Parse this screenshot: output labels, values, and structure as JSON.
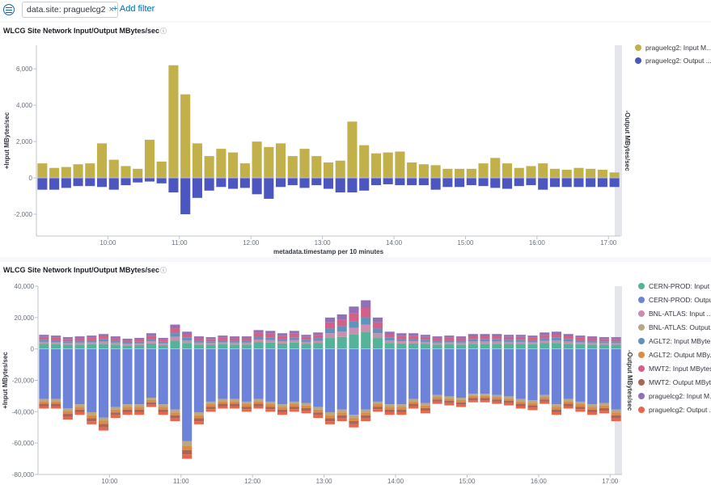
{
  "filter_bar": {
    "filter_pill": "data.site: praguelcg2",
    "remove_glyph": "×",
    "add_filter": "+ Add filter"
  },
  "panels": [
    {
      "title": "WLCG Site Network Input/Output MBytes/sec",
      "info": "ⓘ"
    },
    {
      "title": "WLCG Site Network Input/Output MBytes/sec",
      "info": "ⓘ"
    }
  ],
  "chart_data": [
    {
      "type": "bar",
      "stacked": false,
      "xlabel": "metadata.timestamp per 10 minutes",
      "ylabel_left": "+Input MBytes/sec",
      "ylabel_right": "-Output MBytes/sec",
      "ylim": [
        -3200,
        7300
      ],
      "y_ticks": [
        "6,000",
        "4,000",
        "2,000",
        "0",
        "-2,000"
      ],
      "y_tick_values": [
        6000,
        4000,
        2000,
        0,
        -2000
      ],
      "x_ticks": [
        "10:00",
        "11:00",
        "12:00",
        "13:00",
        "14:00",
        "15:00",
        "16:00",
        "17:00"
      ],
      "x_tick_times": [
        "10:00",
        "11:00",
        "12:00",
        "13:00",
        "14:00",
        "15:00",
        "16:00",
        "17:00"
      ],
      "x_start": "09:05",
      "interval_minutes": 10,
      "grid": false,
      "legend_position": "right",
      "series": [
        {
          "name": "praguelcg2: Input M...",
          "color": "#c2b04b",
          "values": [
            800,
            550,
            600,
            750,
            800,
            1900,
            1000,
            650,
            500,
            2100,
            900,
            6200,
            4600,
            1900,
            1200,
            1600,
            1400,
            800,
            2000,
            1700,
            1900,
            1200,
            1600,
            1200,
            850,
            950,
            3100,
            1800,
            1350,
            1400,
            1450,
            850,
            750,
            700,
            500,
            500,
            500,
            800,
            1100,
            800,
            550,
            650,
            800,
            500,
            450,
            550,
            500,
            450,
            300
          ]
        },
        {
          "name": "praguelcg2: Output ...",
          "color": "#4b56c1",
          "values": [
            -650,
            -650,
            -550,
            -450,
            -450,
            -500,
            -650,
            -400,
            -250,
            -200,
            -300,
            -800,
            -2000,
            -1100,
            -700,
            -500,
            -600,
            -550,
            -900,
            -1150,
            -500,
            -400,
            -550,
            -400,
            -600,
            -800,
            -800,
            -700,
            -400,
            -350,
            -400,
            -400,
            -400,
            -650,
            -500,
            -500,
            -400,
            -450,
            -550,
            -600,
            -450,
            -400,
            -650,
            -500,
            -500,
            -500,
            -500,
            -500,
            -500
          ]
        }
      ]
    },
    {
      "type": "bar",
      "stacked": true,
      "xlabel": "",
      "ylabel_left": "+Input MBytes/sec",
      "ylabel_right": "-Output MBytes/sec",
      "ylim": [
        -80000,
        40000
      ],
      "y_ticks": [
        "40,000",
        "20,000",
        "0",
        "-20,000",
        "-40,000",
        "-60,000",
        "-80,000"
      ],
      "y_tick_values": [
        40000,
        20000,
        0,
        -20000,
        -40000,
        -60000,
        -80000
      ],
      "x_ticks": [
        "10:00",
        "11:00",
        "12:00",
        "13:00",
        "14:00",
        "15:00",
        "16:00",
        "17:00"
      ],
      "x_tick_times": [
        "10:00",
        "11:00",
        "12:00",
        "13:00",
        "14:00",
        "15:00",
        "16:00",
        "17:00"
      ],
      "x_start": "09:05",
      "interval_minutes": 10,
      "grid": false,
      "legend_position": "right",
      "positive_totals": [
        9000,
        8500,
        7500,
        8000,
        8500,
        9500,
        8000,
        6500,
        7000,
        10000,
        7000,
        15500,
        11000,
        8000,
        7500,
        8500,
        8000,
        8000,
        12000,
        11500,
        10000,
        11500,
        9000,
        10500,
        20000,
        22000,
        27000,
        31000,
        20000,
        11000,
        10000,
        10000,
        9000,
        8000,
        8500,
        8000,
        9500,
        9500,
        9500,
        9000,
        9000,
        8500,
        10500,
        11000,
        9500,
        8500,
        8000,
        7500,
        7500
      ],
      "negative_totals": [
        -38000,
        -38000,
        -45000,
        -42000,
        -48000,
        -52000,
        -44000,
        -42000,
        -42000,
        -37000,
        -42000,
        -46000,
        -70000,
        -48000,
        -40000,
        -38000,
        -38000,
        -40000,
        -38000,
        -40000,
        -42000,
        -40000,
        -41000,
        -44000,
        -48000,
        -46000,
        -50000,
        -46000,
        -40000,
        -42000,
        -42000,
        -38000,
        -41000,
        -35000,
        -36000,
        -37000,
        -34000,
        -34000,
        -35000,
        -36000,
        -38000,
        -39000,
        -35000,
        -42000,
        -38000,
        -40000,
        -42000,
        -41000,
        -46000
      ],
      "positive_shares": [
        {
          "name": "CERN-PROD: Input ...",
          "color": "#54b399",
          "share": 0.35
        },
        {
          "name": "BNL-ATLAS: Input ...",
          "color": "#ca8eae",
          "share": 0.15
        },
        {
          "name": "AGLT2: Input MByte...",
          "color": "#6092c0",
          "share": 0.15
        },
        {
          "name": "MWT2: Input MBytes...",
          "color": "#d36086",
          "share": 0.2
        },
        {
          "name": "praguelcg2: Input M...",
          "color": "#9170b8",
          "share": 0.15
        }
      ],
      "negative_shares": [
        {
          "name": "CERN-PROD: Output...",
          "color": "#6c83d9",
          "share": 0.84
        },
        {
          "name": "BNL-ATLAS: Output...",
          "color": "#b9a888",
          "share": 0.04
        },
        {
          "name": "AGLT2: Output MBy...",
          "color": "#da8b45",
          "share": 0.04
        },
        {
          "name": "MWT2: Output MByt...",
          "color": "#aa6556",
          "share": 0.04
        },
        {
          "name": "praguelcg2: Output ...",
          "color": "#e7664c",
          "share": 0.04
        }
      ],
      "legend": [
        {
          "name": "CERN-PROD: Input ...",
          "color": "#54b399"
        },
        {
          "name": "CERN-PROD: Output...",
          "color": "#6c83d9"
        },
        {
          "name": "BNL-ATLAS: Input ...",
          "color": "#ca8eae"
        },
        {
          "name": "BNL-ATLAS: Output...",
          "color": "#b9a888"
        },
        {
          "name": "AGLT2: Input MByte...",
          "color": "#6092c0"
        },
        {
          "name": "AGLT2: Output MBy...",
          "color": "#da8b45"
        },
        {
          "name": "MWT2: Input MBytes...",
          "color": "#d36086"
        },
        {
          "name": "MWT2: Output MByt...",
          "color": "#aa6556"
        },
        {
          "name": "praguelcg2: Input M...",
          "color": "#9170b8"
        },
        {
          "name": "praguelcg2: Output ...",
          "color": "#e7664c"
        }
      ]
    }
  ]
}
